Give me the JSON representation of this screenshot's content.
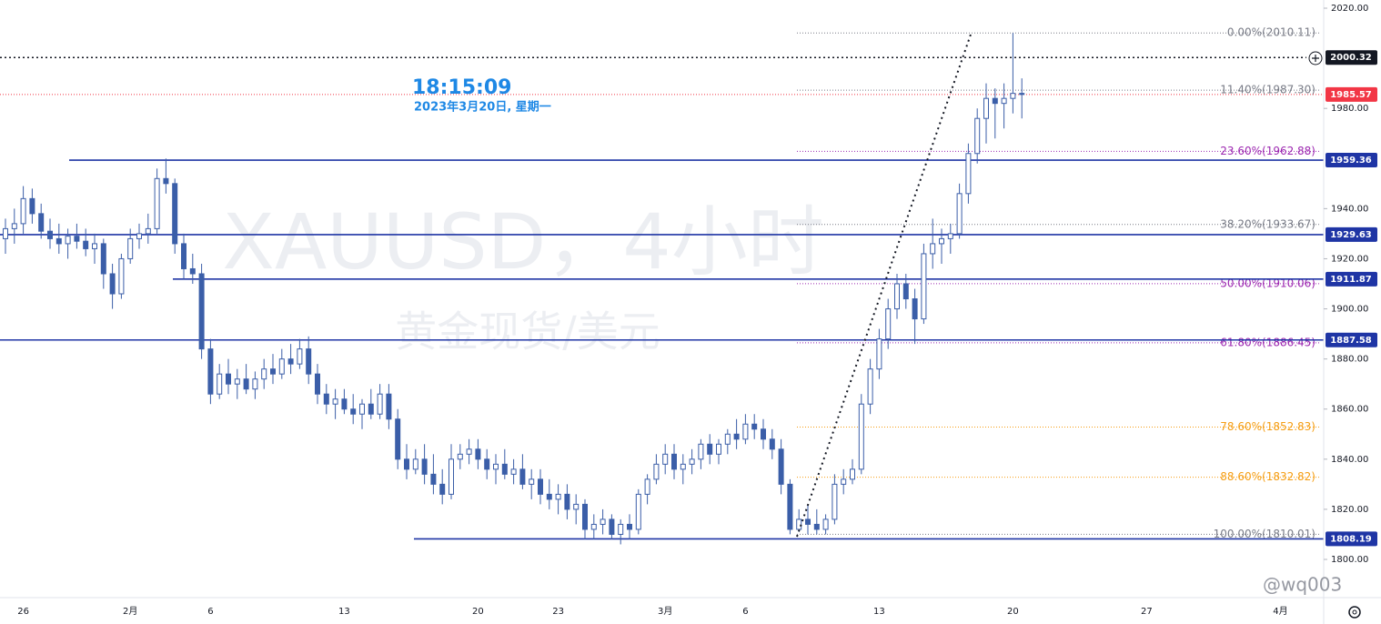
{
  "chart_data": {
    "type": "candlestick",
    "symbol_watermark": "XAUUSD，4小时",
    "description_watermark": "黄金现货/美元",
    "time": "18:15:09",
    "date": "2023年3月20日, 星期一",
    "user_watermark": "@wq003",
    "up_color": "#3b5ea8",
    "down_color": "#3b5ea8",
    "ylim": [
      1784.75,
      2023.27
    ],
    "yticks": [
      {
        "value": 1800,
        "label": "1800.00"
      },
      {
        "value": 1820,
        "label": "1820.00"
      },
      {
        "value": 1840,
        "label": "1840.00"
      },
      {
        "value": 1860,
        "label": "1860.00"
      },
      {
        "value": 1880,
        "label": "1880.00"
      },
      {
        "value": 1900,
        "label": "1900.00"
      },
      {
        "value": 1920,
        "label": "1920.00"
      },
      {
        "value": 1940,
        "label": "1940.00"
      },
      {
        "value": 1980,
        "label": "1980.00"
      },
      {
        "value": 2020,
        "label": "2020.00"
      }
    ],
    "levels": [
      {
        "value": 1959.36,
        "color": "#1f35a5"
      },
      {
        "value": 1929.63,
        "color": "#1f35a5"
      },
      {
        "value": 1911.87,
        "color": "#1f35a5"
      },
      {
        "value": 1887.58,
        "color": "#1f35a5"
      },
      {
        "value": 1808.19,
        "color": "#1f35a5"
      }
    ],
    "fib_levels": [
      {
        "value": 2010.11,
        "label": "0.00%(2010.11)",
        "color": "#787b86"
      },
      {
        "value": 1987.3,
        "label": "11.40%(1987.30)",
        "color": "#787b86"
      },
      {
        "value": 1962.88,
        "label": "23.60%(1962.88)",
        "color": "#9c27b0"
      },
      {
        "value": 1933.67,
        "label": "38.20%(1933.67)",
        "color": "#787b86"
      },
      {
        "value": 1910.06,
        "label": "50.00%(1910.06)",
        "color": "#9c27b0"
      },
      {
        "value": 1886.45,
        "label": "61.80%(1886.45)",
        "color": "#9c27b0"
      },
      {
        "value": 1852.83,
        "label": "78.60%(1852.83)",
        "color": "#f59d12"
      },
      {
        "value": 1832.82,
        "label": "88.60%(1832.82)",
        "color": "#f59d12"
      },
      {
        "value": 1810.01,
        "label": "100.00%(1810.01)",
        "color": "#787b86"
      }
    ],
    "current_price": {
      "value": 1985.57,
      "color": "#f23645"
    },
    "crosshair_price": {
      "value": 2000.32,
      "color": "#131722"
    },
    "categories": [
      null,
      null,
      "26",
      null,
      null,
      null,
      null,
      null,
      null,
      null,
      null,
      null,
      null,
      null,
      "2月",
      null,
      null,
      null,
      null,
      null,
      null,
      null,
      null,
      "6",
      null,
      null,
      null,
      null,
      null,
      null,
      null,
      null,
      null,
      null,
      null,
      null,
      null,
      null,
      "13",
      null,
      null,
      null,
      null,
      null,
      null,
      null,
      null,
      null,
      null,
      null,
      null,
      null,
      null,
      "20",
      null,
      null,
      null,
      null,
      null,
      null,
      null,
      null,
      "23",
      null,
      null,
      null,
      null,
      null,
      null,
      null,
      null,
      null,
      null,
      null,
      "3月",
      null,
      null,
      null,
      null,
      null,
      null,
      null,
      null,
      "6",
      null,
      null,
      null,
      null,
      null,
      null,
      null,
      null,
      null,
      null,
      null,
      null,
      null,
      null,
      "13",
      null,
      null,
      null,
      null,
      null,
      null,
      null,
      null,
      null,
      null,
      null,
      null,
      null,
      null,
      "20",
      null,
      null,
      null,
      null,
      null,
      null,
      null,
      null,
      null,
      null,
      null,
      null,
      null,
      null,
      "27",
      null,
      null,
      null,
      null,
      null,
      null,
      null,
      null,
      null,
      null,
      null,
      null,
      null,
      null,
      "4月",
      null,
      null
    ],
    "candles": [
      [
        1928,
        1936,
        1922,
        1932
      ],
      [
        1932,
        1940,
        1926,
        1934
      ],
      [
        1934,
        1949,
        1930,
        1944
      ],
      [
        1944,
        1948,
        1934,
        1938
      ],
      [
        1938,
        1942,
        1928,
        1931
      ],
      [
        1931,
        1936,
        1924,
        1928
      ],
      [
        1928,
        1934,
        1922,
        1926
      ],
      [
        1926,
        1932,
        1920,
        1929
      ],
      [
        1929,
        1934,
        1924,
        1927
      ],
      [
        1927,
        1932,
        1921,
        1924
      ],
      [
        1924,
        1930,
        1918,
        1926
      ],
      [
        1926,
        1928,
        1908,
        1914
      ],
      [
        1914,
        1918,
        1900,
        1906
      ],
      [
        1906,
        1922,
        1904,
        1920
      ],
      [
        1920,
        1932,
        1918,
        1928
      ],
      [
        1928,
        1934,
        1924,
        1930
      ],
      [
        1930,
        1938,
        1926,
        1932
      ],
      [
        1932,
        1956,
        1930,
        1952
      ],
      [
        1952,
        1960,
        1946,
        1950
      ],
      [
        1950,
        1952,
        1922,
        1926
      ],
      [
        1926,
        1930,
        1912,
        1916
      ],
      [
        1916,
        1922,
        1910,
        1914
      ],
      [
        1914,
        1918,
        1880,
        1884
      ],
      [
        1884,
        1888,
        1862,
        1866
      ],
      [
        1866,
        1878,
        1864,
        1874
      ],
      [
        1874,
        1880,
        1866,
        1870
      ],
      [
        1870,
        1876,
        1864,
        1872
      ],
      [
        1872,
        1878,
        1866,
        1868
      ],
      [
        1868,
        1875,
        1864,
        1872
      ],
      [
        1872,
        1880,
        1868,
        1876
      ],
      [
        1876,
        1882,
        1870,
        1874
      ],
      [
        1874,
        1884,
        1872,
        1880
      ],
      [
        1880,
        1886,
        1874,
        1878
      ],
      [
        1878,
        1888,
        1876,
        1884
      ],
      [
        1884,
        1889,
        1870,
        1874
      ],
      [
        1874,
        1878,
        1862,
        1866
      ],
      [
        1866,
        1870,
        1858,
        1862
      ],
      [
        1862,
        1868,
        1856,
        1864
      ],
      [
        1864,
        1868,
        1858,
        1860
      ],
      [
        1860,
        1866,
        1854,
        1858
      ],
      [
        1858,
        1864,
        1852,
        1862
      ],
      [
        1862,
        1868,
        1856,
        1858
      ],
      [
        1858,
        1870,
        1856,
        1866
      ],
      [
        1866,
        1870,
        1852,
        1856
      ],
      [
        1856,
        1860,
        1836,
        1840
      ],
      [
        1840,
        1846,
        1832,
        1836
      ],
      [
        1836,
        1844,
        1834,
        1840
      ],
      [
        1840,
        1846,
        1830,
        1834
      ],
      [
        1834,
        1842,
        1826,
        1830
      ],
      [
        1830,
        1836,
        1822,
        1826
      ],
      [
        1826,
        1846,
        1824,
        1840
      ],
      [
        1840,
        1846,
        1836,
        1842
      ],
      [
        1842,
        1848,
        1838,
        1844
      ],
      [
        1844,
        1848,
        1836,
        1840
      ],
      [
        1840,
        1844,
        1832,
        1836
      ],
      [
        1836,
        1842,
        1830,
        1838
      ],
      [
        1838,
        1844,
        1832,
        1834
      ],
      [
        1834,
        1840,
        1830,
        1836
      ],
      [
        1836,
        1842,
        1828,
        1830
      ],
      [
        1830,
        1836,
        1824,
        1832
      ],
      [
        1832,
        1836,
        1822,
        1826
      ],
      [
        1826,
        1832,
        1820,
        1824
      ],
      [
        1824,
        1830,
        1818,
        1826
      ],
      [
        1826,
        1830,
        1816,
        1820
      ],
      [
        1820,
        1826,
        1814,
        1822
      ],
      [
        1822,
        1824,
        1808,
        1812
      ],
      [
        1812,
        1818,
        1808,
        1814
      ],
      [
        1814,
        1820,
        1810,
        1816
      ],
      [
        1816,
        1818,
        1808,
        1810
      ],
      [
        1810,
        1816,
        1806,
        1814
      ],
      [
        1814,
        1818,
        1808,
        1812
      ],
      [
        1812,
        1828,
        1810,
        1826
      ],
      [
        1826,
        1834,
        1822,
        1832
      ],
      [
        1832,
        1842,
        1830,
        1838
      ],
      [
        1838,
        1846,
        1834,
        1842
      ],
      [
        1842,
        1846,
        1832,
        1836
      ],
      [
        1836,
        1842,
        1830,
        1838
      ],
      [
        1838,
        1844,
        1834,
        1840
      ],
      [
        1840,
        1848,
        1836,
        1846
      ],
      [
        1846,
        1850,
        1838,
        1842
      ],
      [
        1842,
        1848,
        1838,
        1846
      ],
      [
        1846,
        1852,
        1842,
        1850
      ],
      [
        1850,
        1856,
        1844,
        1848
      ],
      [
        1848,
        1858,
        1846,
        1854
      ],
      [
        1854,
        1858,
        1848,
        1852
      ],
      [
        1852,
        1856,
        1844,
        1848
      ],
      [
        1848,
        1852,
        1840,
        1844
      ],
      [
        1844,
        1848,
        1826,
        1830
      ],
      [
        1830,
        1832,
        1810.01,
        1812
      ],
      [
        1812,
        1820,
        1811,
        1816
      ],
      [
        1816,
        1822,
        1810,
        1814
      ],
      [
        1814,
        1820,
        1810,
        1812
      ],
      [
        1812,
        1818,
        1810,
        1816
      ],
      [
        1816,
        1834,
        1814,
        1830
      ],
      [
        1830,
        1836,
        1826,
        1832
      ],
      [
        1832,
        1840,
        1830,
        1836
      ],
      [
        1836,
        1866,
        1834,
        1862
      ],
      [
        1862,
        1880,
        1858,
        1876
      ],
      [
        1876,
        1892,
        1872,
        1888
      ],
      [
        1888,
        1904,
        1884,
        1900
      ],
      [
        1900,
        1914,
        1896,
        1910
      ],
      [
        1910,
        1914,
        1900,
        1904
      ],
      [
        1904,
        1908,
        1886,
        1896
      ],
      [
        1896,
        1926,
        1894,
        1922
      ],
      [
        1922,
        1936,
        1916,
        1926
      ],
      [
        1926,
        1932,
        1918,
        1928
      ],
      [
        1928,
        1934,
        1922,
        1930
      ],
      [
        1930,
        1950,
        1928,
        1946
      ],
      [
        1946,
        1966,
        1942,
        1962
      ],
      [
        1962,
        1980,
        1958,
        1976
      ],
      [
        1976,
        1990,
        1966,
        1984
      ],
      [
        1984,
        1988,
        1968,
        1982
      ],
      [
        1982,
        1990,
        1972,
        1984
      ],
      [
        1984,
        2010.11,
        1978,
        1986
      ],
      [
        1986,
        1992,
        1976,
        1985.57
      ],
      null,
      null,
      null,
      null,
      null,
      null,
      null,
      null,
      null,
      null,
      null,
      null,
      null,
      null,
      null,
      null,
      null,
      null,
      null,
      null,
      null,
      null,
      null,
      null,
      null,
      null,
      null,
      null,
      null,
      null,
      null
    ]
  }
}
